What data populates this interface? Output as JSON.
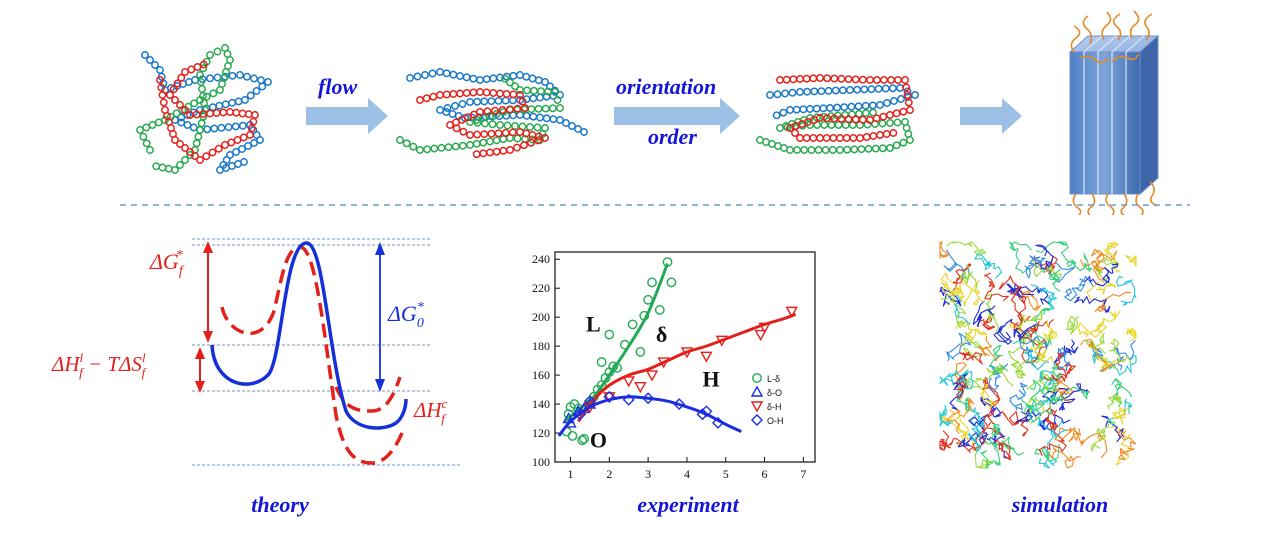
{
  "top_row": {
    "step_labels": {
      "flow": "flow",
      "orientation": "orientation",
      "order": "order"
    }
  },
  "captions": {
    "theory": "theory",
    "experiment": "experiment",
    "simulation": "simulation"
  },
  "theory": {
    "labels": {
      "dG_f": "ΔG",
      "dG_f_sub": "f",
      "dG_f_sup": "*",
      "dG_0": "ΔG",
      "dG_0_sub": "0",
      "dG_0_sup": "*",
      "dH_l_main": "ΔH",
      "dH_l_sup": "l",
      "dH_l_sub": "f",
      "dH_l_rest": " − TΔS",
      "dS_l_sup": "l",
      "dS_l_sub": "f",
      "dH_c_main": "ΔH",
      "dH_c_sup": "c",
      "dH_c_sub": "f"
    },
    "colors": {
      "liquid": "#e3201b",
      "barrier0": "#1430d8"
    }
  },
  "chart_data": {
    "type": "scatter",
    "xlim": [
      0.6,
      7.3
    ],
    "ylim": [
      100,
      245
    ],
    "xticks": [
      1,
      2,
      3,
      4,
      5,
      6,
      7
    ],
    "yticks": [
      100,
      120,
      140,
      160,
      180,
      200,
      220,
      240
    ],
    "region_labels": [
      "L",
      "δ",
      "H",
      "O"
    ],
    "series": [
      {
        "name": "L-δ",
        "marker": "circle",
        "color": "#22aa55",
        "points": [
          [
            0.9,
            121
          ],
          [
            0.95,
            133
          ],
          [
            1.0,
            138
          ],
          [
            1.05,
            118
          ],
          [
            1.1,
            140
          ],
          [
            1.2,
            137
          ],
          [
            1.3,
            115
          ],
          [
            1.35,
            116
          ],
          [
            1.5,
            140
          ],
          [
            1.6,
            145
          ],
          [
            1.7,
            150
          ],
          [
            1.8,
            153
          ],
          [
            1.9,
            158
          ],
          [
            2.0,
            162
          ],
          [
            2.1,
            166
          ],
          [
            1.8,
            169
          ],
          [
            2.0,
            188
          ],
          [
            2.2,
            165
          ],
          [
            2.4,
            181
          ],
          [
            2.6,
            195
          ],
          [
            2.8,
            176
          ],
          [
            2.9,
            201
          ],
          [
            3.0,
            212
          ],
          [
            3.1,
            224
          ],
          [
            3.3,
            205
          ],
          [
            3.5,
            238
          ],
          [
            3.6,
            224
          ]
        ],
        "fit": [
          [
            0.85,
            128
          ],
          [
            1.2,
            136
          ],
          [
            1.6,
            145
          ],
          [
            2.0,
            160
          ],
          [
            2.5,
            180
          ],
          [
            3.0,
            203
          ],
          [
            3.5,
            237
          ]
        ]
      },
      {
        "name": "δ-O",
        "marker": "triangle-up",
        "color": "#1a2ee0",
        "points": [
          [
            0.95,
            130
          ],
          [
            1.0,
            127
          ],
          [
            1.2,
            135
          ],
          [
            1.35,
            137
          ],
          [
            1.5,
            140
          ]
        ],
        "fit": []
      },
      {
        "name": "δ-H",
        "marker": "triangle-down",
        "color": "#e3201b",
        "points": [
          [
            1.5,
            138
          ],
          [
            2.0,
            145
          ],
          [
            2.5,
            156
          ],
          [
            2.8,
            152
          ],
          [
            3.1,
            160
          ],
          [
            3.4,
            169
          ],
          [
            4.0,
            176
          ],
          [
            4.5,
            173
          ],
          [
            4.9,
            184
          ],
          [
            5.9,
            188
          ],
          [
            6.0,
            193
          ],
          [
            6.7,
            204
          ]
        ],
        "fit": [
          [
            1.2,
            128
          ],
          [
            1.6,
            143
          ],
          [
            2.0,
            153
          ],
          [
            2.5,
            160
          ],
          [
            3.0,
            164
          ],
          [
            3.5,
            170
          ],
          [
            4.0,
            176
          ],
          [
            4.5,
            180
          ],
          [
            5.0,
            185
          ],
          [
            5.5,
            190
          ],
          [
            6.0,
            195
          ],
          [
            6.5,
            199
          ],
          [
            6.8,
            202
          ]
        ]
      },
      {
        "name": "O-H",
        "marker": "diamond",
        "color": "#1a2ee0",
        "points": [
          [
            1.25,
            133
          ],
          [
            1.5,
            142
          ],
          [
            2.0,
            145
          ],
          [
            2.5,
            143
          ],
          [
            3.0,
            144
          ],
          [
            3.8,
            140
          ],
          [
            4.4,
            133
          ],
          [
            4.5,
            135
          ],
          [
            4.8,
            127
          ]
        ],
        "fit": [
          [
            0.7,
            118
          ],
          [
            1.0,
            128
          ],
          [
            1.5,
            138
          ],
          [
            2.0,
            143
          ],
          [
            2.5,
            145
          ],
          [
            3.0,
            144
          ],
          [
            3.5,
            142
          ],
          [
            4.0,
            138
          ],
          [
            4.5,
            133
          ],
          [
            5.0,
            126
          ],
          [
            5.4,
            121
          ]
        ]
      }
    ]
  }
}
